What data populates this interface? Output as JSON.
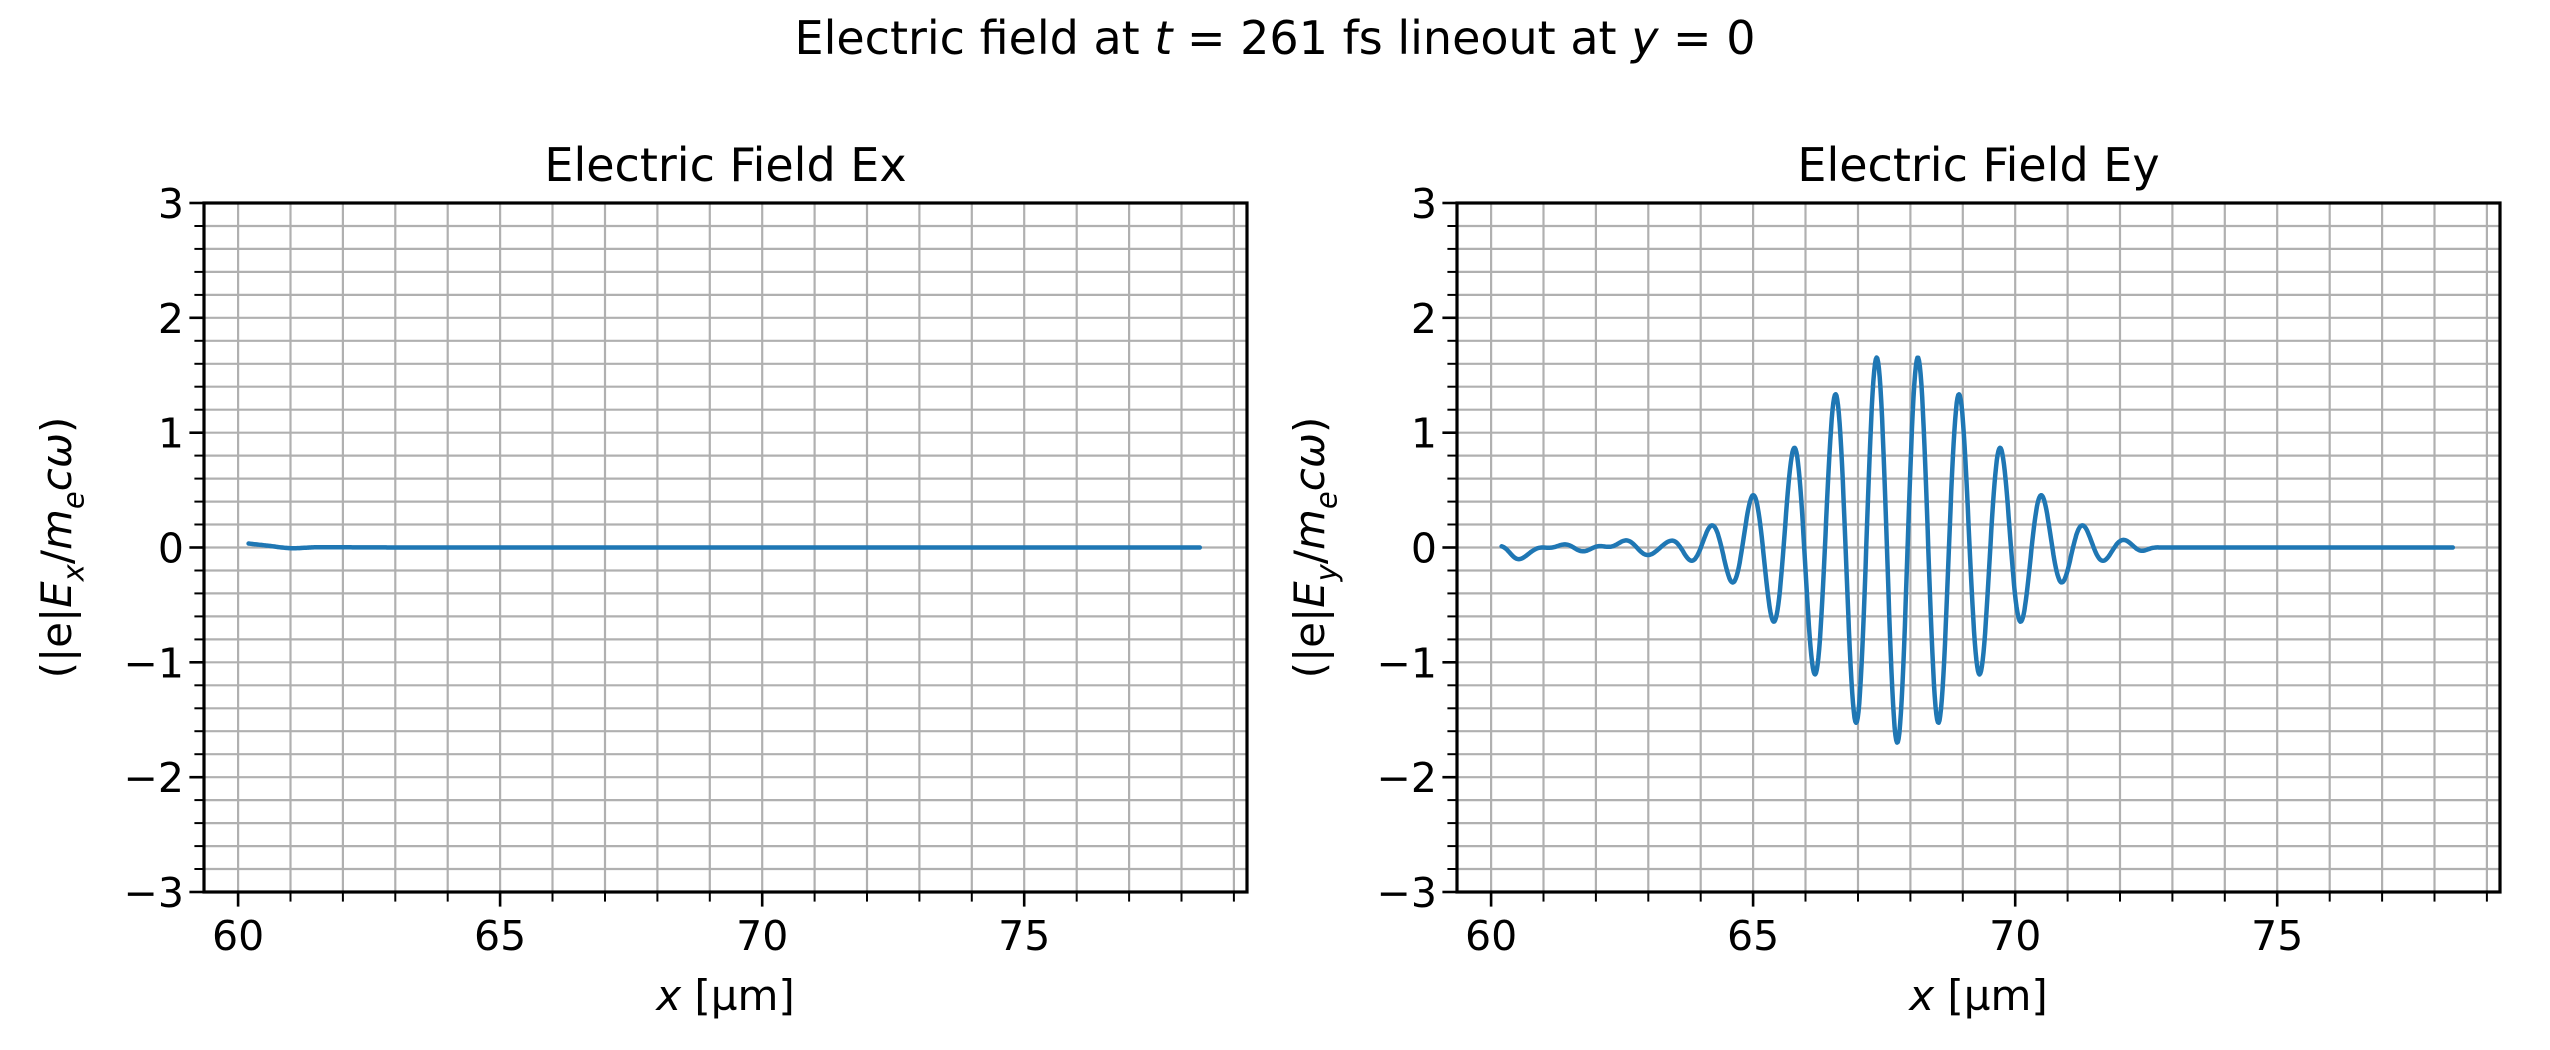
{
  "figure": {
    "suptitle_text": "Electric field at t = 261 fs lineout at y = 0",
    "suptitle_segments": [
      {
        "t": "Electric field at "
      },
      {
        "t": "t",
        "i": true
      },
      {
        "t": " = 261 fs lineout at "
      },
      {
        "t": "y",
        "i": true
      },
      {
        "t": " = 0"
      }
    ],
    "background": "#ffffff",
    "text_color": "#000000",
    "spine_color": "#000000"
  },
  "chart_data": [
    {
      "type": "line",
      "title": "Electric Field Ex",
      "xlabel": "x [µm]",
      "xlabel_segments": [
        {
          "t": "x",
          "i": true
        },
        {
          "t": " [µm]"
        }
      ],
      "ylabel": "(|e|Ex/mecω)",
      "ylabel_segments": [
        {
          "t": "(|e|"
        },
        {
          "t": "E",
          "i": true
        },
        {
          "t": "x",
          "i": true,
          "sub": true
        },
        {
          "t": "/"
        },
        {
          "t": "m",
          "i": true
        },
        {
          "t": "e",
          "i": true,
          "sub": true
        },
        {
          "t": "c",
          "i": true
        },
        {
          "t": "ω",
          "i": true
        },
        {
          "t": ")"
        }
      ],
      "xlim": [
        59.35,
        79.25
      ],
      "ylim": [
        -3,
        3
      ],
      "xticks": [
        60,
        65,
        70,
        75
      ],
      "xtick_labels": [
        "60",
        "65",
        "70",
        "75"
      ],
      "yticks": [
        3,
        2,
        1,
        0,
        -1,
        -2,
        -3
      ],
      "ytick_labels": [
        "3",
        "2",
        "1",
        "0",
        "−1",
        "−2",
        "−3"
      ],
      "minor_x_step": 1,
      "minor_y_step": 0.2,
      "grid": {
        "which": "both",
        "color": "#b0b0b0"
      },
      "line_color": "#1f77b4",
      "series": [
        {
          "name": "Ex",
          "color": "#1f77b4",
          "x_start": 60.2,
          "x_end": 78.35,
          "summary": "Ex ≈ 0 across the entire lineout; tiny +0.035 transient at the left edge near x = 60.2 µm",
          "model": {
            "kind": "near_zero",
            "start_bump": {
              "amplitude": 0.035,
              "x0": 60.2,
              "decay": 0.6
            },
            "dip": {
              "amplitude": -0.015,
              "center": 61.0,
              "sigma": 0.35
            }
          }
        }
      ]
    },
    {
      "type": "line",
      "title": "Electric Field Ey",
      "xlabel": "x [µm]",
      "xlabel_segments": [
        {
          "t": "x",
          "i": true
        },
        {
          "t": " [µm]"
        }
      ],
      "ylabel": "(|e|Ey/mecω)",
      "ylabel_segments": [
        {
          "t": "(|e|"
        },
        {
          "t": "E",
          "i": true
        },
        {
          "t": "y",
          "i": true,
          "sub": true
        },
        {
          "t": "/"
        },
        {
          "t": "m",
          "i": true
        },
        {
          "t": "e",
          "i": true,
          "sub": true
        },
        {
          "t": "c",
          "i": true
        },
        {
          "t": "ω",
          "i": true
        },
        {
          "t": ")"
        }
      ],
      "xlim": [
        59.35,
        79.25
      ],
      "ylim": [
        -3,
        3
      ],
      "xticks": [
        60,
        65,
        70,
        75
      ],
      "xtick_labels": [
        "60",
        "65",
        "70",
        "75"
      ],
      "yticks": [
        3,
        2,
        1,
        0,
        -1,
        -2,
        -3
      ],
      "ytick_labels": [
        "3",
        "2",
        "1",
        "0",
        "−1",
        "−2",
        "−3"
      ],
      "minor_x_step": 1,
      "minor_y_step": 0.2,
      "grid": {
        "which": "both",
        "color": "#b0b0b0"
      },
      "line_color": "#1f77b4",
      "series": [
        {
          "name": "Ey",
          "color": "#1f77b4",
          "x_start": 60.2,
          "x_end": 78.35,
          "summary": "Laser wave packet: Gaussian envelope centered at x ≈ 67.75 µm (σ ≈ 2.4 µm), peak amplitude ≈ ±1.7, carrier wavelength ≈ 0.79 µm; low-amplitude noise (±0.04) for x < 64 µm; flat zero beyond x ≈ 72.5 µm",
          "model": {
            "kind": "wave_packet",
            "noise": {
              "components": [
                [
                  0.028,
                  5.3,
                  1.2
                ],
                [
                  0.016,
                  11.0,
                  4.4
                ],
                [
                  0.012,
                  2.2,
                  2.8
                ]
              ],
              "start_dip": [
                -0.07,
                60.45,
                0.2
              ],
              "fade_start": 63.1,
              "fade_end": 63.9
            },
            "packet": {
              "amplitude": 1.7,
              "center": 67.75,
              "sigma": 2.4,
              "wavelength": 0.789,
              "carrier": "-cos",
              "fade_out_start": 72.3,
              "fade_out_end": 72.8
            }
          },
          "extrema": {
            "peaks": [
              [
                64.2,
                0.19
              ],
              [
                64.99,
                0.45
              ],
              [
                65.78,
                0.87
              ],
              [
                66.57,
                1.33
              ],
              [
                67.36,
                1.65
              ],
              [
                68.15,
                1.65
              ],
              [
                68.93,
                1.33
              ],
              [
                69.72,
                0.87
              ],
              [
                70.51,
                0.45
              ],
              [
                71.3,
                0.19
              ],
              [
                72.09,
                0.07
              ]
            ],
            "troughs": [
              [
                63.8,
                -0.11
              ],
              [
                64.59,
                -0.3
              ],
              [
                65.38,
                -0.64
              ],
              [
                66.17,
                -1.1
              ],
              [
                66.96,
                -1.53
              ],
              [
                67.75,
                -1.7
              ],
              [
                68.54,
                -1.53
              ],
              [
                69.33,
                -1.1
              ],
              [
                70.12,
                -0.64
              ],
              [
                70.91,
                -0.3
              ],
              [
                71.7,
                -0.11
              ]
            ]
          }
        }
      ]
    }
  ]
}
